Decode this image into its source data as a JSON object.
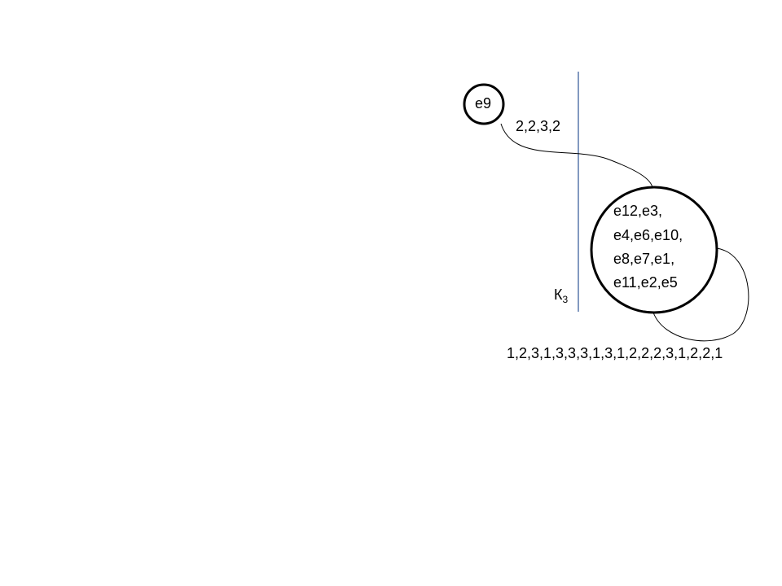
{
  "diagram": {
    "small_node": {
      "label": "e9"
    },
    "edge_label": "2,2,3,2",
    "big_node": {
      "lines": [
        "e12,e3,",
        "e4,e6,e10,",
        "e8,e7,e1,",
        "e11,e2,e5"
      ]
    },
    "cut": {
      "letter": "К",
      "subscript": "3"
    },
    "loop_label": "1,2,3,1,3,3,3,1,3,1,2,2,2,3,1,2,2,1",
    "colors": {
      "nodes": "#000000",
      "cut_line": "#2f5597"
    }
  }
}
